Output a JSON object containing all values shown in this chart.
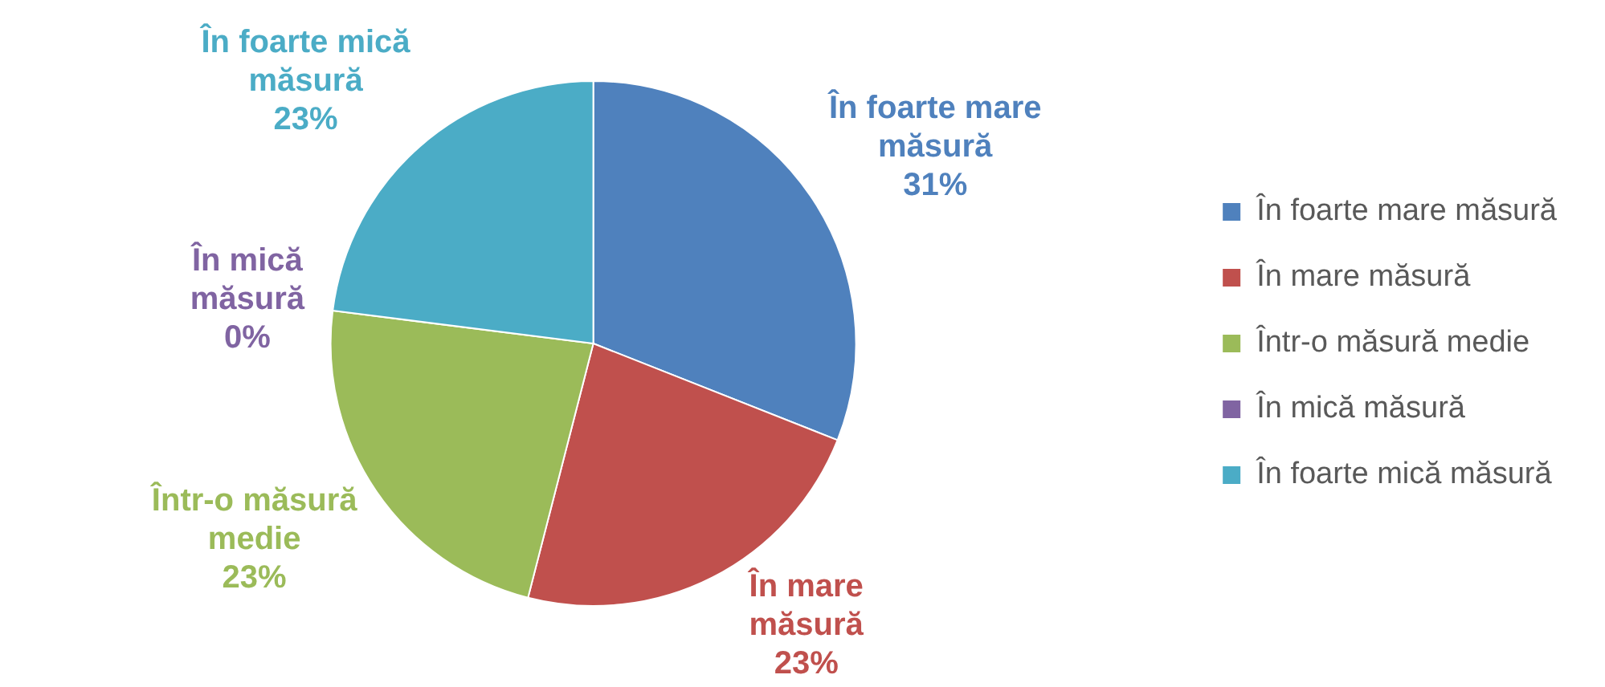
{
  "chart_data": {
    "type": "pie",
    "categories": [
      "În foarte mare măsură",
      "În mare măsură",
      "Într-o măsură medie",
      "În mică măsură",
      "În foarte mică măsură"
    ],
    "values": [
      31,
      23,
      23,
      0,
      23
    ],
    "value_labels": [
      "31%",
      "23%",
      "23%",
      "0%",
      "23%"
    ],
    "colors": [
      "#4f81bd",
      "#c0504d",
      "#9bbb59",
      "#8064a2",
      "#4bacc6"
    ],
    "legend": "right"
  }
}
